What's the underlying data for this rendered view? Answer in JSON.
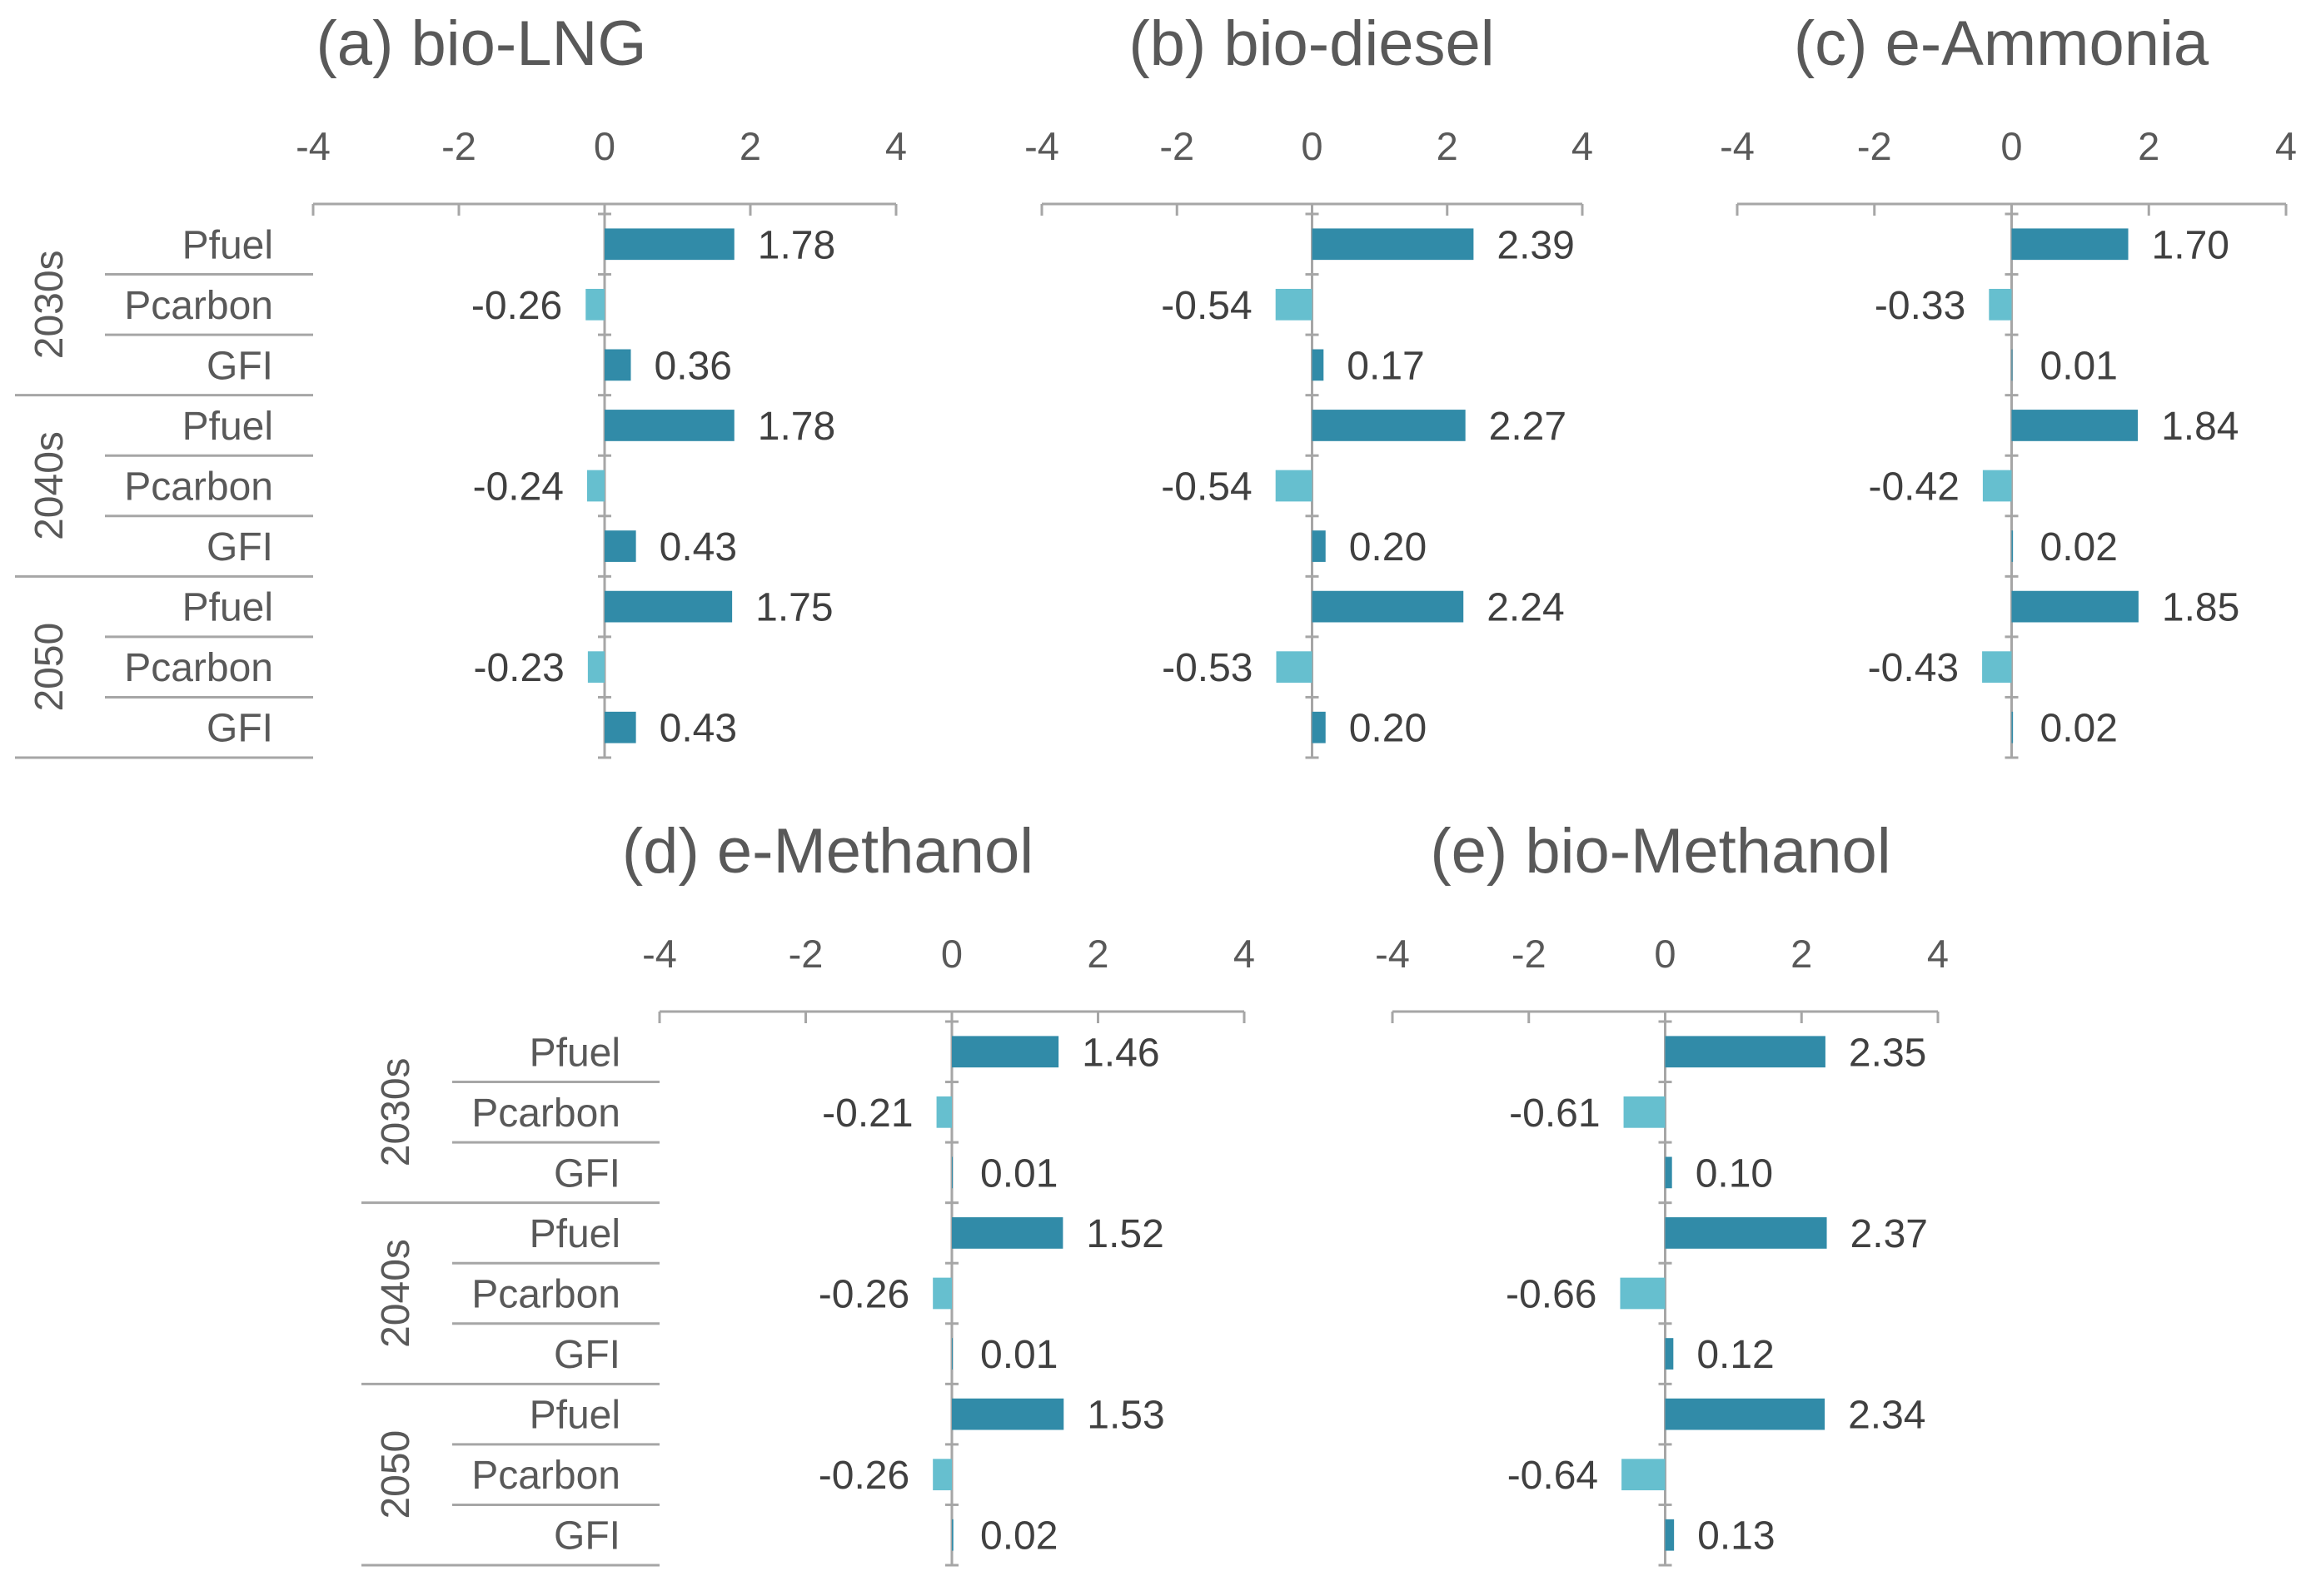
{
  "chart_data": [
    {
      "type": "bar",
      "orientation": "horizontal",
      "title": "(a) bio-LNG",
      "xlim": [
        -4,
        4
      ],
      "xticks": [
        "-4",
        "-2",
        "0",
        "2",
        "4"
      ],
      "groups": [
        "2030s",
        "2040s",
        "2050"
      ],
      "categories": [
        "Pfuel",
        "Pcarbon",
        "GFI"
      ],
      "values": [
        1.78,
        -0.26,
        0.36,
        1.78,
        -0.24,
        0.43,
        1.75,
        -0.23,
        0.43
      ],
      "labels": [
        "1.78",
        "-0.26",
        "0.36",
        "1.78",
        "-0.24",
        "0.43",
        "1.75",
        "-0.23",
        "0.43"
      ]
    },
    {
      "type": "bar",
      "orientation": "horizontal",
      "title": "(b) bio-diesel",
      "xlim": [
        -4,
        4
      ],
      "xticks": [
        "-4",
        "-2",
        "0",
        "2",
        "4"
      ],
      "groups": [
        "2030s",
        "2040s",
        "2050"
      ],
      "categories": [
        "Pfuel",
        "Pcarbon",
        "GFI"
      ],
      "values": [
        2.39,
        -0.54,
        0.17,
        2.27,
        -0.54,
        0.2,
        2.24,
        -0.53,
        0.2
      ],
      "labels": [
        "2.39",
        "-0.54",
        "0.17",
        "2.27",
        "-0.54",
        "0.20",
        "2.24",
        "-0.53",
        "0.20"
      ]
    },
    {
      "type": "bar",
      "orientation": "horizontal",
      "title": "(c) e-Ammonia",
      "xlim": [
        -4,
        4
      ],
      "xticks": [
        "-4",
        "-2",
        "0",
        "2",
        "4"
      ],
      "groups": [
        "2030s",
        "2040s",
        "2050"
      ],
      "categories": [
        "Pfuel",
        "Pcarbon",
        "GFI"
      ],
      "values": [
        1.7,
        -0.33,
        0.01,
        1.84,
        -0.42,
        0.02,
        1.85,
        -0.43,
        0.02
      ],
      "labels": [
        "1.70",
        "-0.33",
        "0.01",
        "1.84",
        "-0.42",
        "0.02",
        "1.85",
        "-0.43",
        "0.02"
      ]
    },
    {
      "type": "bar",
      "orientation": "horizontal",
      "title": "(d) e-Methanol",
      "xlim": [
        -4,
        4
      ],
      "xticks": [
        "-4",
        "-2",
        "0",
        "2",
        "4"
      ],
      "groups": [
        "2030s",
        "2040s",
        "2050"
      ],
      "categories": [
        "Pfuel",
        "Pcarbon",
        "GFI"
      ],
      "values": [
        1.46,
        -0.21,
        0.01,
        1.52,
        -0.26,
        0.01,
        1.53,
        -0.26,
        0.02
      ],
      "labels": [
        "1.46",
        "-0.21",
        "0.01",
        "1.52",
        "-0.26",
        "0.01",
        "1.53",
        "-0.26",
        "0.02"
      ]
    },
    {
      "type": "bar",
      "orientation": "horizontal",
      "title": "(e) bio-Methanol",
      "xlim": [
        -4,
        4
      ],
      "xticks": [
        "-4",
        "-2",
        "0",
        "2",
        "4"
      ],
      "groups": [
        "2030s",
        "2040s",
        "2050"
      ],
      "categories": [
        "Pfuel",
        "Pcarbon",
        "GFI"
      ],
      "values": [
        2.35,
        -0.61,
        0.1,
        2.37,
        -0.66,
        0.12,
        2.34,
        -0.64,
        0.13
      ],
      "labels": [
        "2.35",
        "-0.61",
        "0.10",
        "2.37",
        "-0.66",
        "0.12",
        "2.34",
        "-0.64",
        "0.13"
      ]
    }
  ],
  "colors": {
    "positive_bar": "#318ba8",
    "negative_bar": "#66bfcf",
    "axis": "#a6a6a6",
    "text": "#595959",
    "value_text": "#404040"
  }
}
